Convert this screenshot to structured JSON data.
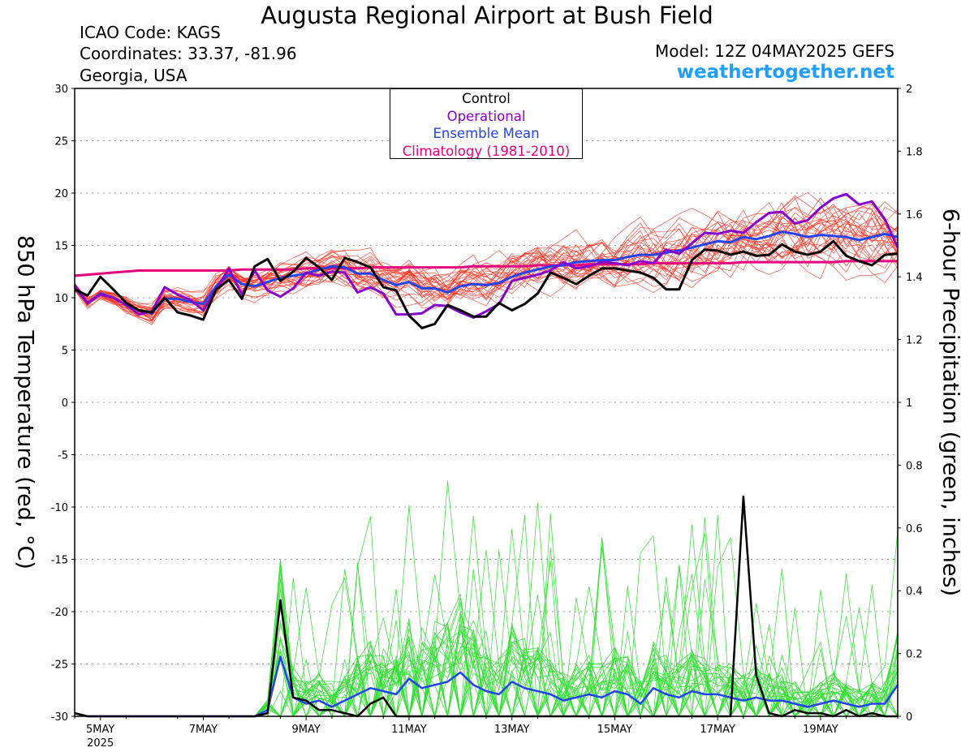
{
  "header": {
    "title": "Augusta Regional Airport at Bush Field",
    "icao": "ICAO Code: KAGS",
    "coordinates": "Coordinates: 33.37, -81.96",
    "region": "Georgia, USA",
    "model": "Model: 12Z 04MAY2025 GEFS",
    "site": "weathertogether.net"
  },
  "legend": {
    "items": [
      {
        "label": "Control",
        "color": "#000000"
      },
      {
        "label": "Operational",
        "color": "#8800cc"
      },
      {
        "label": "Ensemble Mean",
        "color": "#2244ee"
      },
      {
        "label": "Climatology (1981-2010)",
        "color": "#e6007e"
      }
    ]
  },
  "colors": {
    "member_temp": "#ff3322",
    "member_precip": "#33dd33",
    "control": "#000000",
    "operational": "#8800cc",
    "mean": "#2244ee",
    "climatology": "#e6007e",
    "site": "#1e9fff"
  },
  "chart_data": {
    "type": "line",
    "title": "Augusta Regional Airport at Bush Field",
    "ylabel": "850 hPa Temperature (red, °C)",
    "y2label": "6-hour Precipitation (green, inches)",
    "ylim": [
      -30,
      30
    ],
    "y2lim": [
      0,
      2
    ],
    "yticks": [
      30,
      25,
      20,
      15,
      10,
      5,
      0,
      -5,
      -10,
      -15,
      -20,
      -25,
      -30
    ],
    "y2ticks": [
      2,
      1.8,
      1.6,
      1.4,
      1.2,
      1,
      0.8,
      0.6,
      0.4,
      0.2,
      0
    ],
    "xticks": [
      {
        "label": "5MAY",
        "sub": "2025",
        "step": 2
      },
      {
        "label": "7MAY",
        "step": 10
      },
      {
        "label": "9MAY",
        "step": 18
      },
      {
        "label": "11MAY",
        "step": 26
      },
      {
        "label": "13MAY",
        "step": 34
      },
      {
        "label": "15MAY",
        "step": 42
      },
      {
        "label": "17MAY",
        "step": 50
      },
      {
        "label": "19MAY",
        "step": 58
      }
    ],
    "x_step_hours": 6,
    "steps": 65,
    "grid": true,
    "temperature": {
      "control": [
        10.8,
        10.2,
        12,
        10.8,
        9.5,
        8.8,
        8.6,
        10,
        8.6,
        8.3,
        7.9,
        10.8,
        11.7,
        9.9,
        13,
        13.7,
        11.6,
        12.5,
        13.8,
        12.9,
        11.7,
        13.8,
        13.4,
        12.9,
        11,
        10.7,
        8.3,
        7.1,
        7.5,
        9.3,
        8.8,
        8.2,
        8.2,
        9.5,
        8.8,
        9.4,
        10.4,
        12.4,
        11.9,
        11.3,
        12.1,
        12.8,
        12.8,
        12.6,
        12.4,
        11.9,
        10.8,
        10.8,
        13.6,
        14.6,
        14.5,
        14.1,
        14.4,
        14,
        14.1,
        15.1,
        14.4,
        14.1,
        14.4,
        15.4,
        14,
        13.5,
        13.1,
        14.1,
        14.2
      ],
      "operational": [
        11.2,
        9.5,
        10.3,
        10,
        9.3,
        8.4,
        8.7,
        11,
        10.3,
        9.8,
        8.8,
        10.8,
        12.8,
        10.3,
        12.6,
        10.7,
        10.1,
        10.9,
        12.4,
        12.1,
        12.5,
        12.4,
        10.5,
        11,
        10.4,
        8.4,
        8.4,
        8.5,
        9.3,
        9.2,
        8.6,
        8.1,
        8.7,
        9.4,
        11.6,
        11.9,
        12.2,
        12.6,
        13.4,
        12.8,
        13,
        13.4,
        13.3,
        13.1,
        13.5,
        13.3,
        14.6,
        14.2,
        15.2,
        16.2,
        16.1,
        16.4,
        16.2,
        17.2,
        18.1,
        18.2,
        17.1,
        17.4,
        18.6,
        19.5,
        19.9,
        18.9,
        19.2,
        17.5,
        14.8
      ],
      "mean": [
        11,
        9.5,
        10.4,
        10,
        9.3,
        8.8,
        8.5,
        9.9,
        9.9,
        9.6,
        9.4,
        11.1,
        12.2,
        11.3,
        11.1,
        11.5,
        11.9,
        12.1,
        12.3,
        12.7,
        13,
        12.9,
        12.3,
        12.3,
        11.7,
        11.2,
        11.5,
        10.9,
        10.9,
        10.5,
        11.1,
        11.3,
        11.2,
        11.4,
        12,
        12.4,
        12.7,
        13,
        13.1,
        13.4,
        13.5,
        13.6,
        13.6,
        13.9,
        14.1,
        14.1,
        14.3,
        14.5,
        14.8,
        15.1,
        15.4,
        15.3,
        15.8,
        15.6,
        15.9,
        16.3,
        16.1,
        15.8,
        16,
        15.9,
        15.8,
        15.5,
        15.8,
        16.1,
        15.8
      ],
      "climatology": [
        12.1,
        12.2,
        12.3,
        12.4,
        12.5,
        12.6,
        12.6,
        12.6,
        12.6,
        12.6,
        12.6,
        12.6,
        12.6,
        12.7,
        12.7,
        12.7,
        12.7,
        12.7,
        12.8,
        12.8,
        12.8,
        12.8,
        12.8,
        12.9,
        12.9,
        12.9,
        12.9,
        12.9,
        12.9,
        12.9,
        12.9,
        13,
        13,
        13,
        13,
        13,
        13.1,
        13.1,
        13.1,
        13.1,
        13.2,
        13.2,
        13.2,
        13.2,
        13.2,
        13.3,
        13.3,
        13.3,
        13.3,
        13.3,
        13.3,
        13.3,
        13.4,
        13.4,
        13.4,
        13.4,
        13.4,
        13.4,
        13.4,
        13.4,
        13.5,
        13.5,
        13.5,
        13.5,
        13.5
      ]
    },
    "precipitation": {
      "control": [
        0.01,
        0,
        0,
        0,
        0,
        0,
        0,
        0,
        0,
        0,
        0,
        0,
        0,
        0,
        0,
        0.01,
        0.37,
        0.06,
        0.05,
        0.02,
        0.02,
        0.01,
        0,
        0.04,
        0.06,
        0,
        0,
        0,
        0,
        0,
        0,
        0,
        0,
        0,
        0,
        0,
        0,
        0,
        0,
        0,
        0,
        0,
        0,
        0,
        0,
        0,
        0,
        0,
        0,
        0,
        0,
        0,
        0.7,
        0.13,
        0.01,
        0,
        0.02,
        0.01,
        0.01,
        0,
        0.02,
        0,
        0.01,
        0,
        0
      ],
      "mean": [
        0.01,
        0,
        0,
        0,
        0,
        0,
        0,
        0,
        0,
        0,
        0,
        0,
        0,
        0,
        0,
        0.02,
        0.19,
        0.06,
        0.04,
        0.05,
        0.03,
        0.05,
        0.07,
        0.09,
        0.08,
        0.07,
        0.12,
        0.09,
        0.1,
        0.11,
        0.14,
        0.1,
        0.08,
        0.07,
        0.11,
        0.09,
        0.08,
        0.07,
        0.05,
        0.06,
        0.07,
        0.06,
        0.08,
        0.07,
        0.04,
        0.09,
        0.07,
        0.06,
        0.08,
        0.07,
        0.07,
        0.06,
        0.05,
        0.06,
        0.05,
        0.05,
        0.04,
        0.03,
        0.04,
        0.05,
        0.04,
        0.03,
        0.04,
        0.04,
        0.1
      ]
    }
  }
}
